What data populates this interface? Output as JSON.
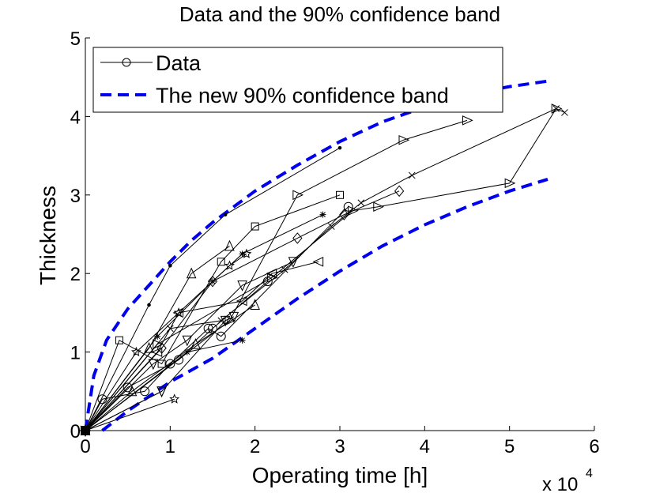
{
  "chart_data": {
    "type": "line",
    "title": "Data and the 90% confidence band",
    "xlabel": "Operating time [h]",
    "ylabel": "Thickness",
    "x_multiplier_label": "x 10",
    "x_multiplier_exp": "4",
    "xlim": [
      0,
      6
    ],
    "ylim": [
      0,
      5
    ],
    "x_ticks": [
      "0",
      "1",
      "2",
      "3",
      "4",
      "5",
      "6"
    ],
    "y_ticks": [
      "0",
      "1",
      "2",
      "3",
      "4",
      "5"
    ],
    "grid": false,
    "legend_position": "top-left",
    "legend": [
      {
        "label": "Data",
        "style": "solid-circle",
        "color": "#000000"
      },
      {
        "label": "The new 90% confidence band",
        "style": "dashed",
        "color": "#0000ee"
      }
    ],
    "band": {
      "upper": {
        "x": [
          0,
          0.1,
          0.25,
          0.5,
          0.75,
          1.0,
          1.25,
          1.5,
          2.0,
          2.5,
          3.0,
          3.5,
          4.0,
          4.5,
          5.0,
          5.45
        ],
        "y": [
          0,
          0.7,
          1.15,
          1.55,
          1.85,
          2.15,
          2.42,
          2.65,
          3.05,
          3.38,
          3.68,
          3.93,
          4.12,
          4.28,
          4.38,
          4.45
        ]
      },
      "lower": {
        "x": [
          0.2,
          0.5,
          1.0,
          1.5,
          2.0,
          2.5,
          3.0,
          3.5,
          4.0,
          4.5,
          5.0,
          5.45
        ],
        "y": [
          0,
          0.25,
          0.62,
          0.92,
          1.3,
          1.68,
          2.03,
          2.35,
          2.62,
          2.85,
          3.05,
          3.2
        ]
      }
    },
    "series": [
      {
        "marker": "dot",
        "x": [
          0,
          0.75,
          1.0,
          1.65,
          3.0
        ],
        "y": [
          0,
          1.6,
          2.1,
          2.75,
          3.6
        ]
      },
      {
        "marker": "tri-right",
        "x": [
          0,
          1.7,
          2.5,
          3.75,
          4.5
        ],
        "y": [
          0,
          1.4,
          3.0,
          3.7,
          3.95
        ]
      },
      {
        "marker": "tri-right",
        "x": [
          0,
          0.85,
          2.2,
          3.15,
          3.45,
          5.0,
          5.55
        ],
        "y": [
          0,
          1.1,
          1.95,
          2.8,
          2.85,
          3.15,
          4.1
        ]
      },
      {
        "marker": "square",
        "x": [
          0,
          0.4,
          0.9,
          1.6,
          2.0,
          3.0
        ],
        "y": [
          0,
          1.15,
          0.85,
          2.15,
          2.6,
          3.0
        ]
      },
      {
        "marker": "diamond",
        "x": [
          0,
          0.9,
          1.5,
          2.5,
          3.05,
          3.7
        ],
        "y": [
          0,
          1.05,
          1.9,
          2.45,
          2.75,
          3.05
        ]
      },
      {
        "marker": "cross",
        "x": [
          0,
          1.0,
          1.6,
          2.35,
          2.9,
          3.25,
          3.85,
          5.55,
          5.65
        ],
        "y": [
          0,
          1.3,
          1.4,
          2.05,
          2.6,
          2.9,
          3.25,
          4.1,
          4.05
        ]
      },
      {
        "marker": "star",
        "x": [
          0,
          0.85,
          1.5,
          1.85,
          2.8
        ],
        "y": [
          0,
          1.2,
          1.9,
          2.25,
          2.75
        ]
      },
      {
        "marker": "hexagram",
        "x": [
          0,
          0.6,
          1.1,
          1.7,
          1.9
        ],
        "y": [
          0,
          1.0,
          1.5,
          2.1,
          2.25
        ]
      },
      {
        "marker": "tri-up",
        "x": [
          0,
          0.75,
          1.25,
          1.7
        ],
        "y": [
          0,
          1.05,
          2.0,
          2.35
        ]
      },
      {
        "marker": "tri-left",
        "x": [
          0,
          0.85,
          1.1,
          1.85,
          2.2,
          2.75
        ],
        "y": [
          0,
          1.0,
          1.5,
          1.65,
          2.0,
          2.15
        ]
      },
      {
        "marker": "tri-down",
        "x": [
          0,
          0.8,
          1.2,
          1.85,
          2.45
        ],
        "y": [
          0,
          0.85,
          1.15,
          1.85,
          2.15
        ]
      },
      {
        "marker": "circle",
        "x": [
          0,
          0.2,
          0.7,
          1.0,
          1.45,
          1.6,
          3.1
        ],
        "y": [
          0,
          0.4,
          0.5,
          0.85,
          1.3,
          1.2,
          2.85
        ]
      },
      {
        "marker": "tri-up",
        "x": [
          0,
          0.55,
          1.3,
          2.0
        ],
        "y": [
          0,
          0.5,
          1.1,
          1.6
        ]
      },
      {
        "marker": "circle",
        "x": [
          0,
          0.5,
          1.1,
          1.5,
          2.15
        ],
        "y": [
          0,
          0.55,
          0.9,
          1.3,
          1.9
        ]
      },
      {
        "marker": "tri-down",
        "x": [
          0,
          0.9,
          1.65,
          1.75
        ],
        "y": [
          0,
          0.5,
          1.4,
          1.45
        ]
      },
      {
        "marker": "star",
        "x": [
          0,
          1.2,
          1.85
        ],
        "y": [
          0,
          1.0,
          1.15
        ]
      },
      {
        "marker": "tri-down",
        "x": [
          0,
          0.9
        ],
        "y": [
          0,
          0.5
        ]
      },
      {
        "marker": "hexagram",
        "x": [
          0,
          1.05
        ],
        "y": [
          0,
          0.4
        ]
      }
    ]
  }
}
